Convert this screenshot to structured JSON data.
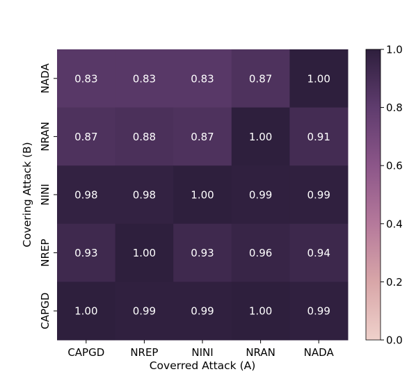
{
  "chart_data": {
    "type": "heatmap",
    "title": "",
    "xlabel": "Coverred Attack (A)",
    "ylabel": "Covering Attack (B)",
    "x_categories": [
      "CAPGD",
      "NREP",
      "NINI",
      "NRAN",
      "NADA"
    ],
    "y_categories": [
      "NADA",
      "NRAN",
      "NINI",
      "NREP",
      "CAPGD"
    ],
    "values": [
      [
        0.83,
        0.83,
        0.83,
        0.87,
        1.0
      ],
      [
        0.87,
        0.88,
        0.87,
        1.0,
        0.91
      ],
      [
        0.98,
        0.98,
        1.0,
        0.99,
        0.99
      ],
      [
        0.93,
        1.0,
        0.93,
        0.96,
        0.94
      ],
      [
        1.0,
        0.99,
        0.99,
        1.0,
        0.99
      ]
    ],
    "value_labels": [
      [
        "0.83",
        "0.83",
        "0.83",
        "0.87",
        "1.00"
      ],
      [
        "0.87",
        "0.88",
        "0.87",
        "1.00",
        "0.91"
      ],
      [
        "0.98",
        "0.98",
        "1.00",
        "0.99",
        "0.99"
      ],
      [
        "0.93",
        "1.00",
        "0.93",
        "0.96",
        "0.94"
      ],
      [
        "1.00",
        "0.99",
        "0.99",
        "1.00",
        "0.99"
      ]
    ],
    "colorbar": {
      "range": [
        0.0,
        1.0
      ],
      "ticks": [
        0.0,
        0.2,
        0.4,
        0.6,
        0.8,
        1.0
      ],
      "tick_labels": [
        "0.0",
        "0.2",
        "0.4",
        "0.6",
        "0.8",
        "1.0"
      ]
    },
    "colormap": [
      "#efd1cb",
      "#d8a6a8",
      "#b5799b",
      "#8c5689",
      "#5f3c6e",
      "#2e1f3d"
    ],
    "text_color": "#ffffff"
  }
}
